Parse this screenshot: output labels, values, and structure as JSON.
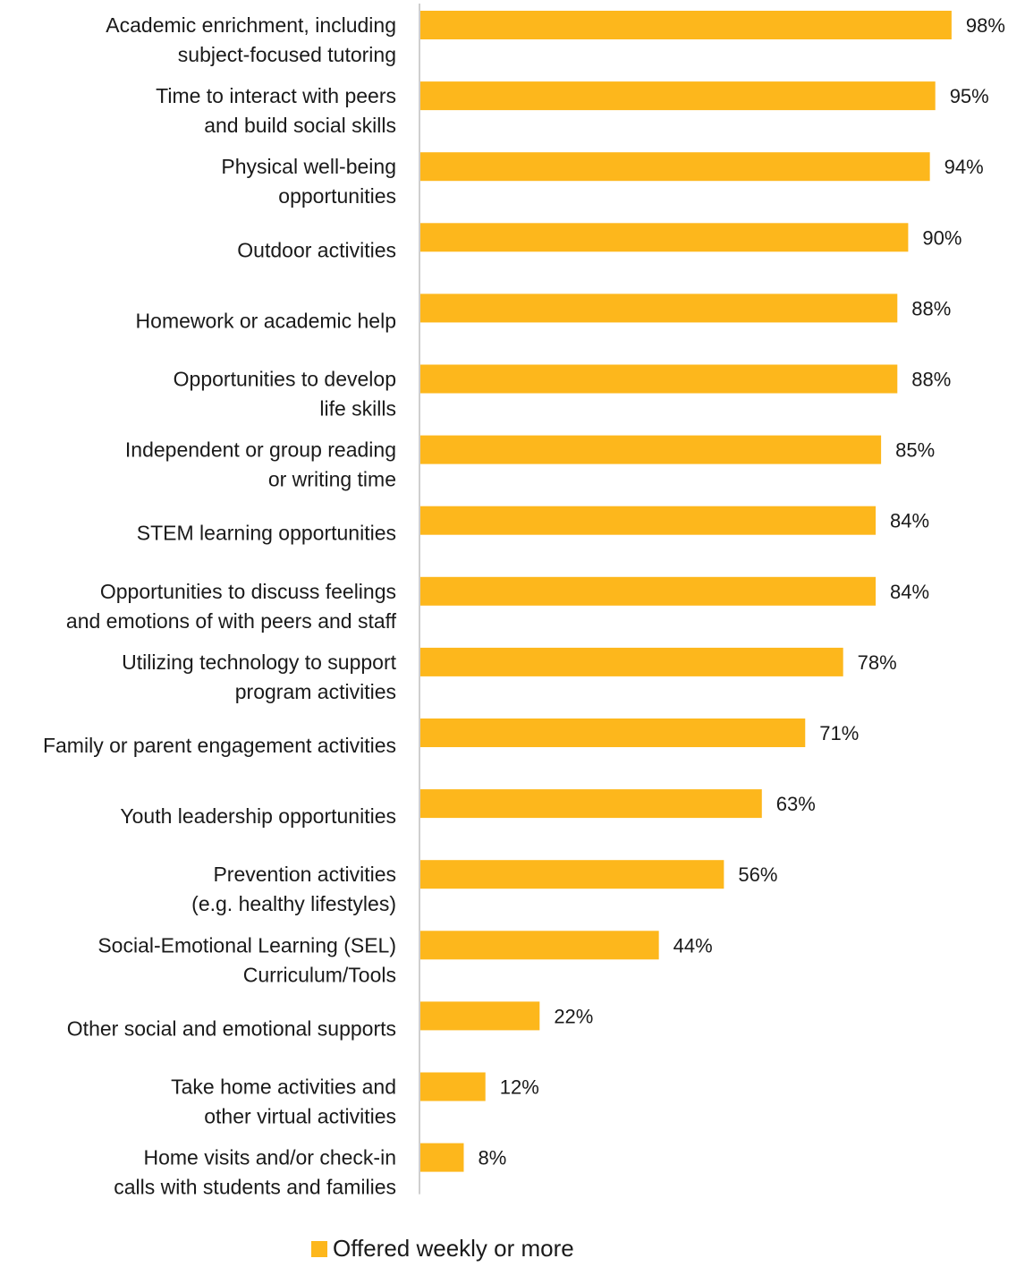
{
  "colors": {
    "bar": "#FDB71C",
    "axis": "#BFBFBF",
    "text": "#1a1a1a"
  },
  "chart_data": {
    "type": "bar",
    "orientation": "horizontal",
    "title": "",
    "xlabel": "",
    "ylabel": "",
    "xlim": [
      0,
      100
    ],
    "grid": false,
    "legend_position": "bottom",
    "value_suffix": "%",
    "categories": [
      [
        "Academic enrichment, including",
        "subject-focused tutoring"
      ],
      [
        "Time to interact with peers",
        "and build social skills"
      ],
      [
        "Physical well-being",
        "opportunities"
      ],
      [
        "Outdoor activities"
      ],
      [
        "Homework or academic help"
      ],
      [
        "Opportunities to develop",
        "life skills"
      ],
      [
        "Independent or group reading",
        "or writing time"
      ],
      [
        "STEM learning opportunities"
      ],
      [
        "Opportunities to discuss feelings",
        "and emotions of with peers and staff"
      ],
      [
        "Utilizing technology to support",
        "program activities"
      ],
      [
        "Family or parent engagement activities"
      ],
      [
        "Youth leadership opportunities"
      ],
      [
        "Prevention activities",
        "(e.g. healthy lifestyles)"
      ],
      [
        "Social-Emotional Learning (SEL)",
        "Curriculum/Tools"
      ],
      [
        "Other social and emotional supports"
      ],
      [
        "Take home activities and",
        "other virtual activities"
      ],
      [
        "Home visits and/or check-in",
        "calls with students and families"
      ]
    ],
    "series": [
      {
        "name": "Offered weekly or more",
        "values": [
          98,
          95,
          94,
          90,
          88,
          88,
          85,
          84,
          84,
          78,
          71,
          63,
          56,
          44,
          22,
          12,
          8
        ]
      }
    ]
  }
}
